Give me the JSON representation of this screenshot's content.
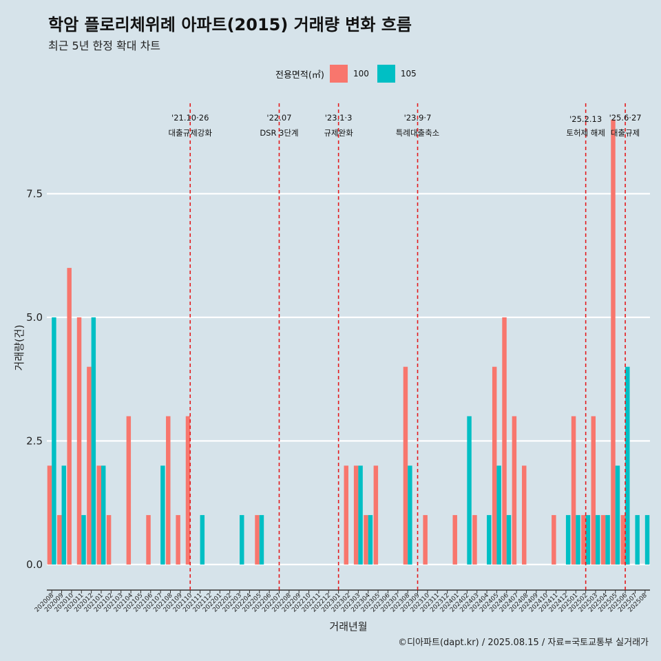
{
  "header": {
    "title": "학암 플로리체위례 아파트(2015) 거래량 변화 흐름",
    "subtitle": "최근 5년 한정 확대 차트"
  },
  "legend": {
    "title": "전용면적(㎡)",
    "items": [
      {
        "label": "100",
        "color": "#f8766d"
      },
      {
        "label": "105",
        "color": "#00bfc4"
      }
    ]
  },
  "caption": "©디아파트(dapt.kr) / 2025.08.15 / 자료=국토교통부 실거래가",
  "chart_data": {
    "type": "bar",
    "title": "학암 플로리체위례 아파트(2015) 거래량 변화 흐름",
    "xlabel": "거래년월",
    "ylabel": "거래량(건)",
    "ylim": [
      -0.35,
      9.4
    ],
    "yticks": [
      0.0,
      2.5,
      5.0,
      7.5
    ],
    "ytick_labels": [
      "0.0",
      "2.5",
      "5.0",
      "7.5"
    ],
    "grid": true,
    "legend_position": "top",
    "categories": [
      "202008",
      "202009",
      "202010",
      "202011",
      "202012",
      "202101",
      "202102",
      "202103",
      "202104",
      "202105",
      "202106",
      "202107",
      "202108",
      "202109",
      "202110",
      "202111",
      "202112",
      "202201",
      "202202",
      "202203",
      "202204",
      "202205",
      "202206",
      "202207",
      "202208",
      "202209",
      "202210",
      "202211",
      "202212",
      "202301",
      "202302",
      "202303",
      "202304",
      "202305",
      "202306",
      "202307",
      "202308",
      "202309",
      "202310",
      "202311",
      "202312",
      "202401",
      "202402",
      "202403",
      "202404",
      "202405",
      "202406",
      "202407",
      "202408",
      "202409",
      "202410",
      "202411",
      "202412",
      "202501",
      "202502",
      "202503",
      "202504",
      "202505",
      "202506",
      "202507",
      "202508"
    ],
    "series": [
      {
        "name": "100",
        "color": "#f8766d",
        "values": [
          2,
          1,
          6,
          5,
          4,
          2,
          1,
          0,
          3,
          0,
          1,
          0,
          3,
          1,
          3,
          0,
          0,
          0,
          0,
          0,
          0,
          1,
          0,
          0,
          0,
          0,
          0,
          0,
          0,
          0,
          2,
          2,
          1,
          2,
          0,
          0,
          4,
          0,
          1,
          0,
          0,
          1,
          0,
          1,
          0,
          4,
          5,
          3,
          2,
          0,
          0,
          1,
          0,
          3,
          1,
          3,
          1,
          9,
          1,
          0,
          0
        ]
      },
      {
        "name": "105",
        "color": "#00bfc4",
        "values": [
          5,
          2,
          0,
          1,
          5,
          2,
          0,
          0,
          0,
          0,
          0,
          2,
          0,
          0,
          0,
          1,
          0,
          0,
          0,
          1,
          0,
          1,
          0,
          0,
          0,
          0,
          0,
          0,
          0,
          0,
          0,
          2,
          1,
          0,
          0,
          0,
          2,
          0,
          0,
          0,
          0,
          0,
          3,
          0,
          1,
          2,
          1,
          0,
          0,
          0,
          0,
          0,
          1,
          1,
          1,
          1,
          1,
          2,
          4,
          1,
          1
        ]
      }
    ],
    "events": [
      {
        "date": "202110",
        "line1": "'21.10·26",
        "line2": "대출규제강화"
      },
      {
        "date": "202207",
        "line1": "'22.07",
        "line2": "DSR 3단계"
      },
      {
        "date": "202301",
        "line1": "'23.1·3",
        "line2": "규제완화"
      },
      {
        "date": "202309",
        "line1": "'23.9·7",
        "line2": "특례대출축소"
      },
      {
        "date": "202502",
        "line1": "'25.2.13",
        "line2": "토허제 해제"
      },
      {
        "date": "202506",
        "line1": "'25.6·27",
        "line2": "대출규제"
      }
    ]
  }
}
